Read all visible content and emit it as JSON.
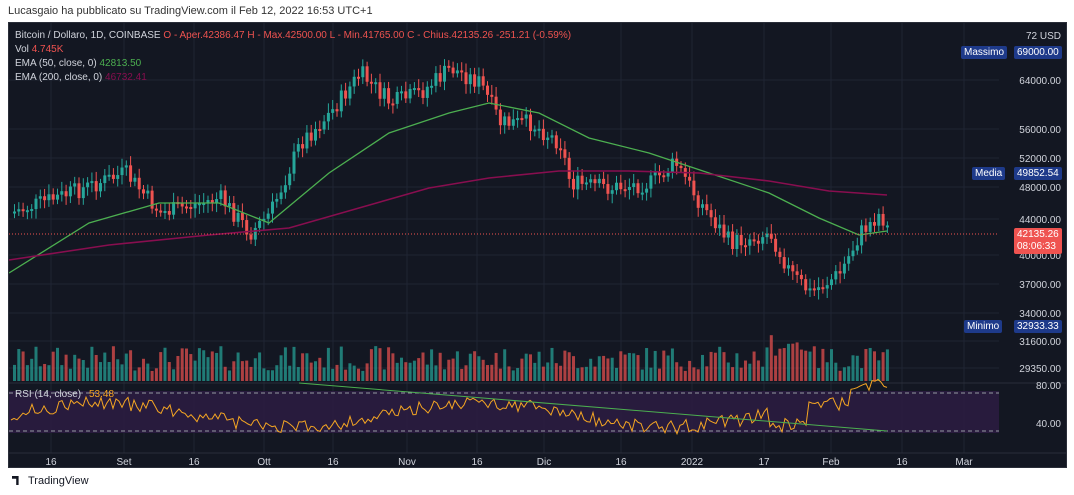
{
  "attribution": "Lucasgaio ha pubblicato su TradingView.com il Feb 12, 2022 16:53 UTC+1",
  "legend": {
    "symbol": "Bitcoin / Dollaro, 1D, COINBASE",
    "ohlc": "O - Aper.42386.47  H - Max.42500.00  L - Min.41765.00  C - Chius.42135.26  -251.21 (-0.59%)",
    "vol_label": "Vol",
    "vol_value": "4.745K",
    "ema50_label": "EMA (50, close, 0)",
    "ema50_value": "42813.50",
    "ema200_label": "EMA (200, close, 0)",
    "ema200_value": "46732.41"
  },
  "price_axis": {
    "unit": "72 USD",
    "ticks": [
      "64000.00",
      "56000.00",
      "52000.00",
      "48000.00",
      "44000.00",
      "40000.00",
      "37000.00",
      "34000.00",
      "31600.00",
      "29350.00"
    ]
  },
  "tags": {
    "high_label": "Massimo",
    "high_value": "69000.00",
    "mid_label": "Media",
    "mid_value": "49852.54",
    "low_label": "Minimo",
    "low_value": "32933.33",
    "last_price": "42135.26",
    "countdown": "08:06:33"
  },
  "rsi": {
    "label": "RSI (14, close)",
    "value": "53.48",
    "ticks": [
      "80.00",
      "40.00"
    ]
  },
  "time_axis": [
    "16",
    "Set",
    "16",
    "Ott",
    "16",
    "Nov",
    "16",
    "Dic",
    "16",
    "2022",
    "17",
    "Feb",
    "16",
    "Mar"
  ],
  "footer": {
    "brand": "TradingView"
  },
  "colors": {
    "background": "#131722",
    "up": "#26a69a",
    "down": "#ef5350",
    "ema50": "#4caf50",
    "ema200": "#880e4f",
    "rsi": "#f5a623",
    "rsi_band": "#2b1c40",
    "tag_blue": "#1e3a8a",
    "tag_red": "#ef5350"
  },
  "chart_data": {
    "type": "line",
    "title": "",
    "series": [
      {
        "name": "EMA (50, close, 0)",
        "values": []
      },
      {
        "name": "EMA (200, close, 0)",
        "values": []
      }
    ],
    "ylim": [
      29350,
      72000
    ]
  }
}
